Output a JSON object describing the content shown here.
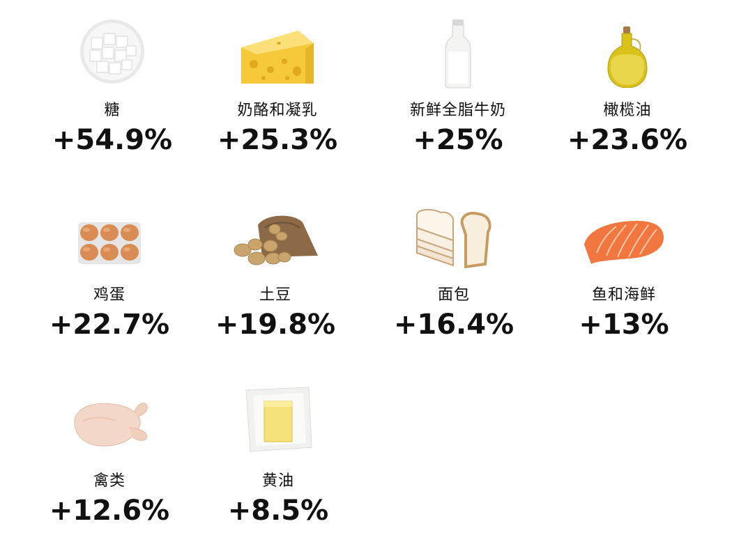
{
  "items": [
    {
      "label": "糖",
      "value": "+54.9%",
      "icon": "sugar-cubes-icon"
    },
    {
      "label": "奶酪和凝乳",
      "value": "+25.3%",
      "icon": "cheese-icon"
    },
    {
      "label": "新鲜全脂牛奶",
      "value": "+25%",
      "icon": "milk-bottle-icon"
    },
    {
      "label": "橄榄油",
      "value": "+23.6%",
      "icon": "olive-oil-icon"
    },
    {
      "label": "鸡蛋",
      "value": "+22.7%",
      "icon": "eggs-icon"
    },
    {
      "label": "土豆",
      "value": "+19.8%",
      "icon": "potatoes-icon"
    },
    {
      "label": "面包",
      "value": "+16.4%",
      "icon": "bread-icon"
    },
    {
      "label": "鱼和海鲜",
      "value": "+13%",
      "icon": "salmon-icon"
    },
    {
      "label": "禽类",
      "value": "+12.6%",
      "icon": "chicken-icon"
    },
    {
      "label": "黄油",
      "value": "+8.5%",
      "icon": "butter-icon"
    }
  ]
}
